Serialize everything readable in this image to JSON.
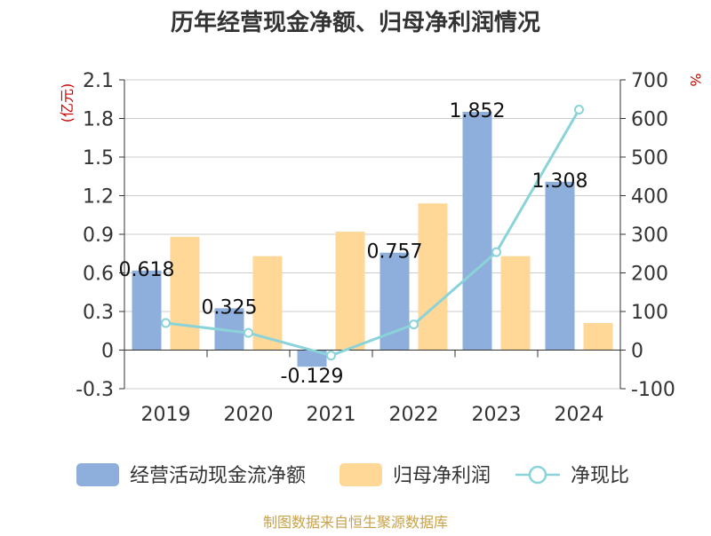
{
  "chart_data": {
    "type": "bar",
    "title": "历年经营现金净额、归母净利润情况",
    "categories": [
      "2019",
      "2020",
      "2021",
      "2022",
      "2023",
      "2024"
    ],
    "series": [
      {
        "name": "经营活动现金流净额",
        "type": "bar",
        "axis": "left",
        "color": "#8eaedb",
        "values": [
          0.618,
          0.325,
          -0.129,
          0.757,
          1.852,
          1.308
        ]
      },
      {
        "name": "归母净利润",
        "type": "bar",
        "axis": "left",
        "color": "#ffd797",
        "values": [
          0.88,
          0.73,
          0.92,
          1.14,
          0.73,
          0.21
        ]
      },
      {
        "name": "净现比",
        "type": "line",
        "axis": "right",
        "color": "#8ad3d8",
        "values": [
          70.2,
          44.5,
          -14.0,
          66.4,
          253.7,
          622.9
        ]
      }
    ],
    "data_labels": [
      "0.618",
      "0.325",
      "-0.129",
      "0.757",
      "1.852",
      "1.308"
    ],
    "left_axis": {
      "unit_label": "(亿元)",
      "ylim": [
        -0.3,
        2.1
      ],
      "ticks": [
        "-0.3",
        "0",
        "0.3",
        "0.6",
        "0.9",
        "1.2",
        "1.5",
        "1.8",
        "2.1"
      ]
    },
    "right_axis": {
      "unit_label": "%",
      "ylim": [
        -100,
        700
      ],
      "ticks": [
        "-100",
        "0",
        "100",
        "200",
        "300",
        "400",
        "500",
        "600",
        "700"
      ]
    },
    "grid": true,
    "legend_position": "bottom"
  },
  "source": "制图数据来自恒生聚源数据库",
  "colors": {
    "title": "#333333",
    "axis_text": "#333333",
    "unit": "#cc0000",
    "grid": "#cccccc",
    "source": "#c8a24a"
  }
}
